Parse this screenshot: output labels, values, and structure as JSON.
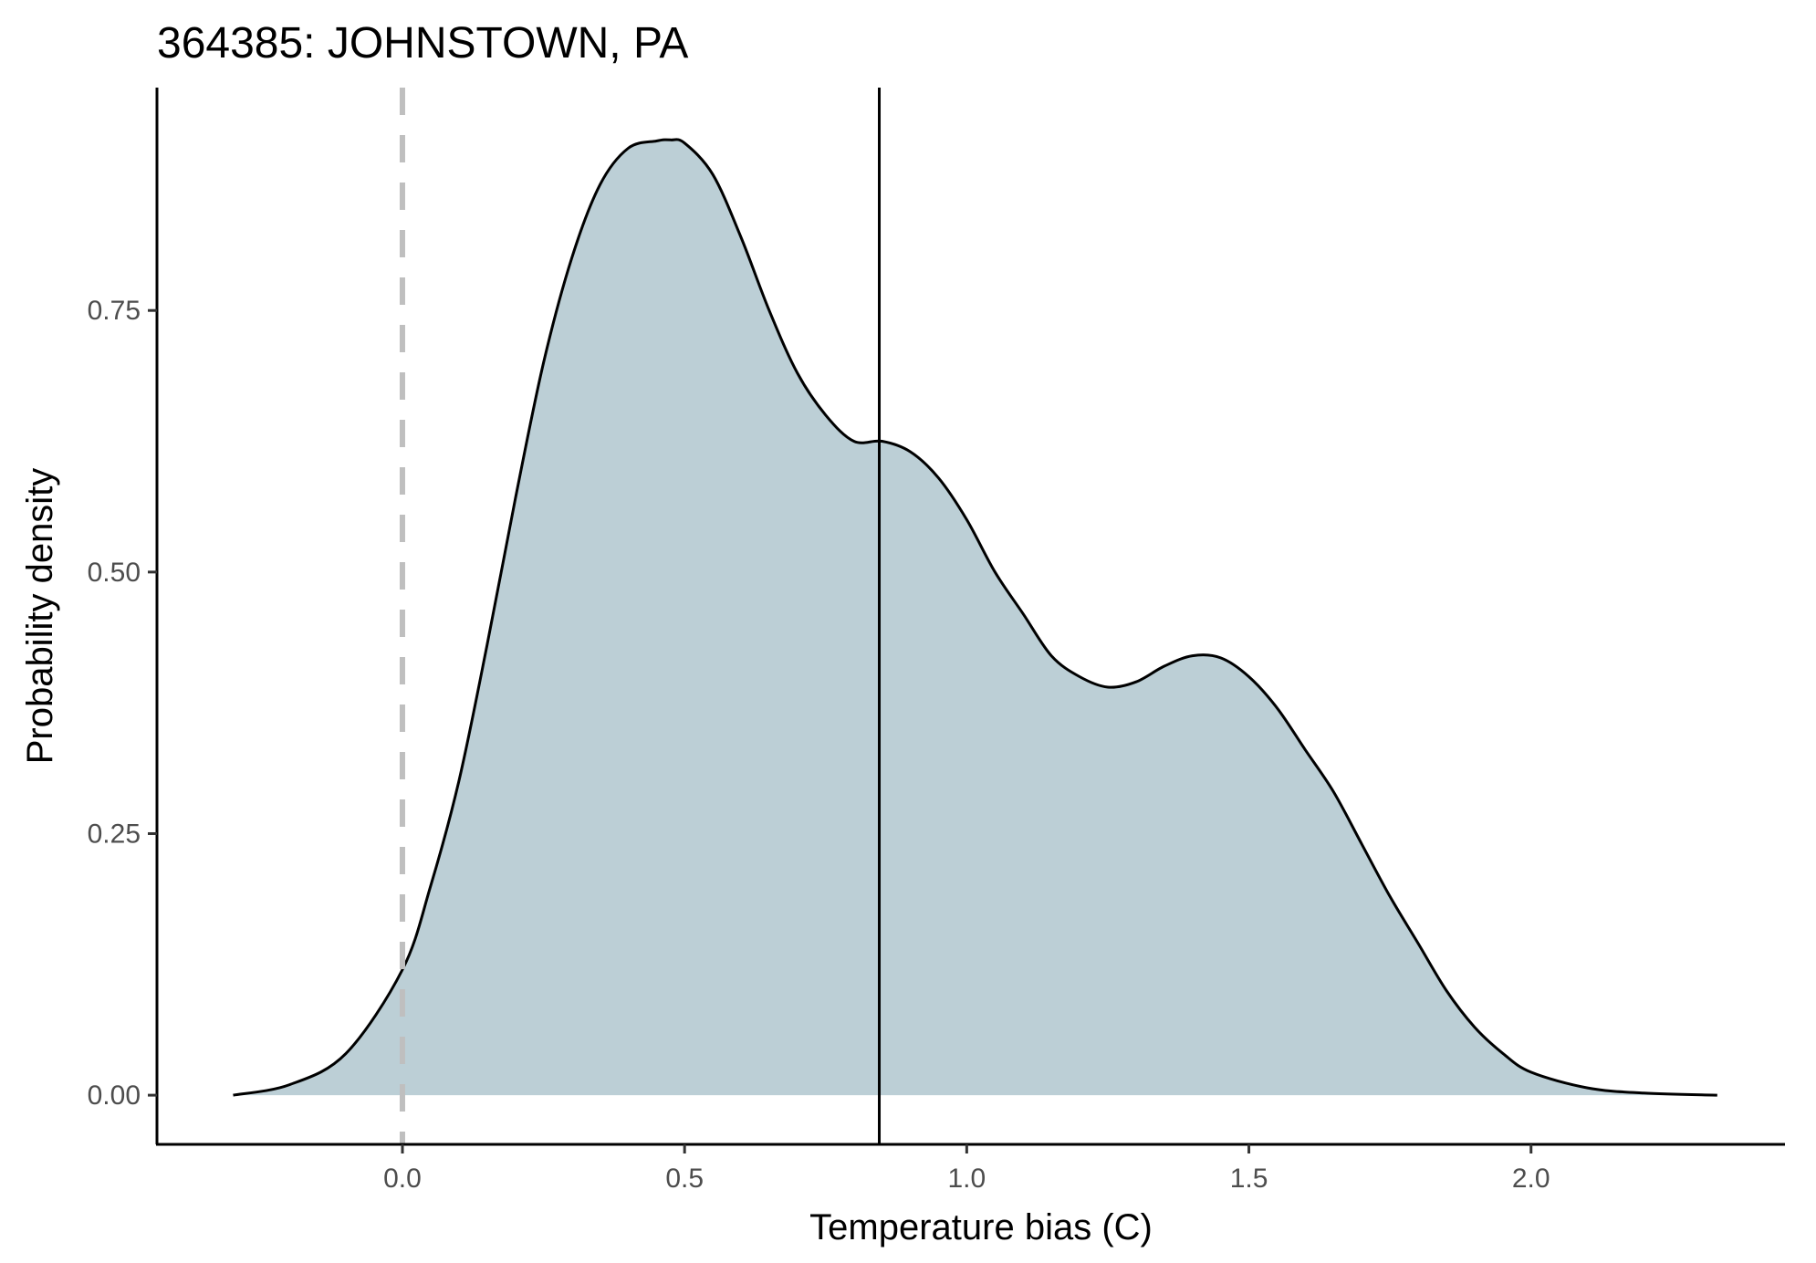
{
  "chart_data": {
    "type": "area",
    "title": "364385: JOHNSTOWN, PA",
    "xlabel": "Temperature bias (C)",
    "ylabel": "Probability density",
    "xlim": [
      -0.435,
      2.45
    ],
    "ylim": [
      -0.047,
      0.963
    ],
    "x_ticks": [
      {
        "value": 0.0,
        "label": "0.0"
      },
      {
        "value": 0.5,
        "label": "0.5"
      },
      {
        "value": 1.0,
        "label": "1.0"
      },
      {
        "value": 1.5,
        "label": "1.5"
      },
      {
        "value": 2.0,
        "label": "2.0"
      }
    ],
    "y_ticks": [
      {
        "value": 0.0,
        "label": "0.00"
      },
      {
        "value": 0.25,
        "label": "0.25"
      },
      {
        "value": 0.5,
        "label": "0.50"
      },
      {
        "value": 0.75,
        "label": "0.75"
      }
    ],
    "grid": false,
    "fill_color": "#bccfd6",
    "line_color": "#000000",
    "density": {
      "x": [
        -0.3,
        -0.2,
        -0.1,
        0.0,
        0.05,
        0.1,
        0.15,
        0.2,
        0.25,
        0.3,
        0.35,
        0.4,
        0.45,
        0.475,
        0.5,
        0.55,
        0.6,
        0.65,
        0.7,
        0.75,
        0.8,
        0.85,
        0.9,
        0.95,
        1.0,
        1.05,
        1.1,
        1.15,
        1.2,
        1.25,
        1.3,
        1.35,
        1.4,
        1.45,
        1.5,
        1.55,
        1.6,
        1.65,
        1.7,
        1.75,
        1.8,
        1.85,
        1.9,
        1.95,
        2.0,
        2.1,
        2.2,
        2.33
      ],
      "y": [
        0.0,
        0.01,
        0.04,
        0.12,
        0.2,
        0.3,
        0.43,
        0.57,
        0.7,
        0.8,
        0.87,
        0.905,
        0.912,
        0.913,
        0.91,
        0.88,
        0.82,
        0.75,
        0.69,
        0.65,
        0.625,
        0.625,
        0.615,
        0.59,
        0.55,
        0.5,
        0.46,
        0.42,
        0.4,
        0.39,
        0.395,
        0.41,
        0.42,
        0.418,
        0.4,
        0.37,
        0.33,
        0.29,
        0.24,
        0.19,
        0.145,
        0.1,
        0.065,
        0.04,
        0.022,
        0.007,
        0.002,
        0.0
      ]
    },
    "reference_lines": [
      {
        "x": 0.0,
        "style": "dashed",
        "color": "#bfbfbf"
      },
      {
        "x": 0.845,
        "style": "solid",
        "color": "#000000"
      }
    ]
  }
}
